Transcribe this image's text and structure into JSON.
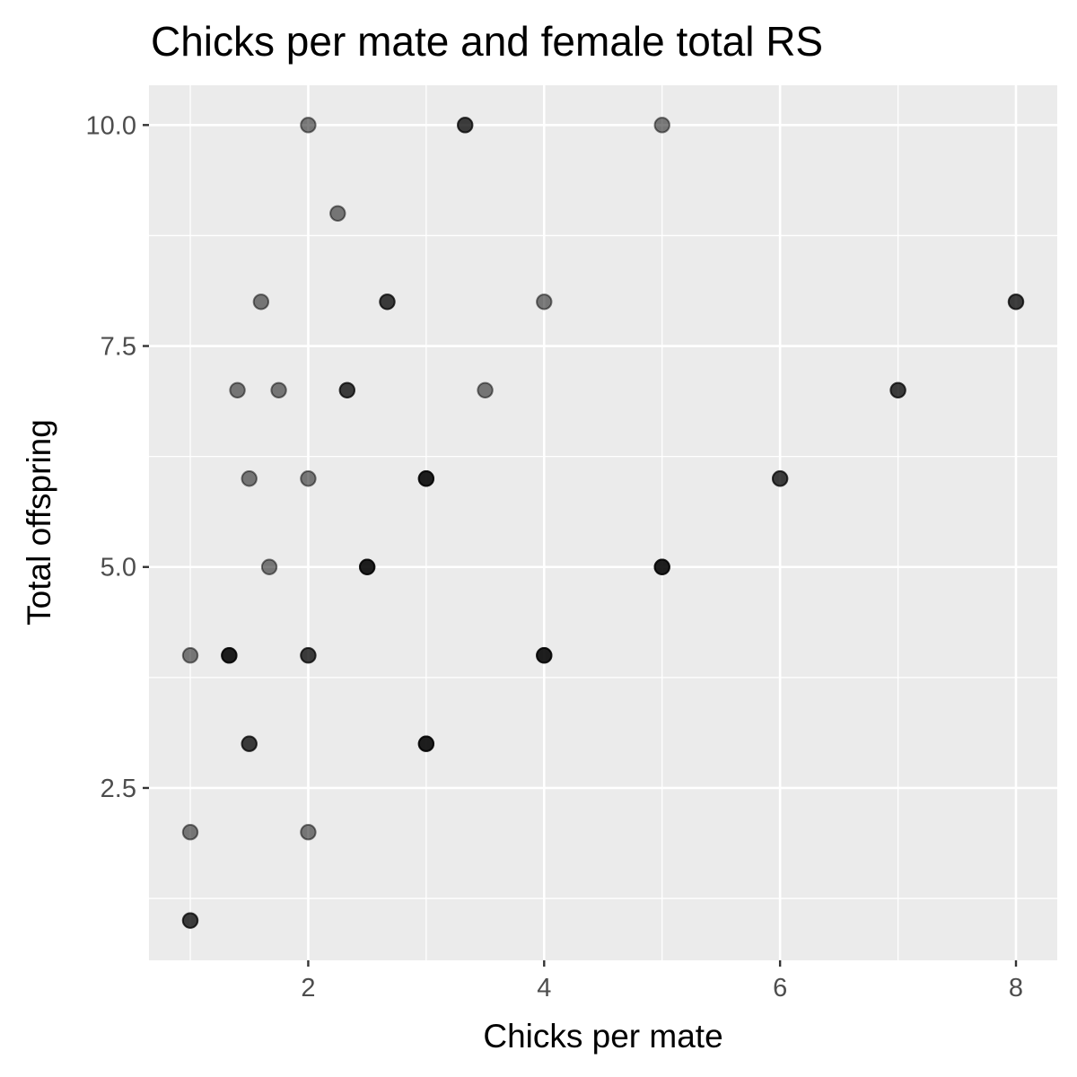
{
  "chart_data": {
    "type": "scatter",
    "title": "Chicks per mate and female total RS",
    "xlabel": "Chicks per mate",
    "ylabel": "Total offspring",
    "xlim": [
      0.65,
      8.35
    ],
    "ylim": [
      0.55,
      10.45
    ],
    "x_ticks": [
      2,
      4,
      6,
      8
    ],
    "x_tick_labels": [
      "2",
      "4",
      "6",
      "8"
    ],
    "x_minor_ticks": [
      1,
      3,
      5,
      7
    ],
    "y_ticks": [
      2.5,
      5.0,
      7.5,
      10.0
    ],
    "y_tick_labels": [
      "2.5",
      "5.0",
      "7.5",
      "10.0"
    ],
    "y_minor_ticks": [
      1.25,
      3.75,
      6.25,
      8.75
    ],
    "grid": true,
    "point_alpha": 0.5,
    "point_color": "#000000",
    "panel_background": "#ebebeb",
    "gridline_color": "#ffffff",
    "points": [
      {
        "x": 2,
        "y": 10
      },
      {
        "x": 3.33,
        "y": 10
      },
      {
        "x": 3.33,
        "y": 10
      },
      {
        "x": 5,
        "y": 10
      },
      {
        "x": 2.25,
        "y": 9
      },
      {
        "x": 1.6,
        "y": 8
      },
      {
        "x": 2.67,
        "y": 8
      },
      {
        "x": 2.67,
        "y": 8
      },
      {
        "x": 4,
        "y": 8
      },
      {
        "x": 8,
        "y": 8
      },
      {
        "x": 8,
        "y": 8
      },
      {
        "x": 1.4,
        "y": 7
      },
      {
        "x": 1.75,
        "y": 7
      },
      {
        "x": 2.33,
        "y": 7
      },
      {
        "x": 2.33,
        "y": 7
      },
      {
        "x": 3.5,
        "y": 7
      },
      {
        "x": 7,
        "y": 7
      },
      {
        "x": 7,
        "y": 7
      },
      {
        "x": 1.5,
        "y": 6
      },
      {
        "x": 2,
        "y": 6
      },
      {
        "x": 3,
        "y": 6
      },
      {
        "x": 3,
        "y": 6
      },
      {
        "x": 3,
        "y": 6
      },
      {
        "x": 6,
        "y": 6
      },
      {
        "x": 6,
        "y": 6
      },
      {
        "x": 1.67,
        "y": 5
      },
      {
        "x": 2.5,
        "y": 5
      },
      {
        "x": 2.5,
        "y": 5
      },
      {
        "x": 2.5,
        "y": 5
      },
      {
        "x": 5,
        "y": 5
      },
      {
        "x": 5,
        "y": 5
      },
      {
        "x": 5,
        "y": 5
      },
      {
        "x": 1,
        "y": 4
      },
      {
        "x": 1.33,
        "y": 4
      },
      {
        "x": 1.33,
        "y": 4
      },
      {
        "x": 1.33,
        "y": 4
      },
      {
        "x": 2,
        "y": 4
      },
      {
        "x": 2,
        "y": 4
      },
      {
        "x": 4,
        "y": 4
      },
      {
        "x": 4,
        "y": 4
      },
      {
        "x": 4,
        "y": 4
      },
      {
        "x": 1.5,
        "y": 3
      },
      {
        "x": 1.5,
        "y": 3
      },
      {
        "x": 3,
        "y": 3
      },
      {
        "x": 3,
        "y": 3
      },
      {
        "x": 3,
        "y": 3
      },
      {
        "x": 1,
        "y": 2
      },
      {
        "x": 2,
        "y": 2
      },
      {
        "x": 1,
        "y": 1
      },
      {
        "x": 1,
        "y": 1
      }
    ]
  }
}
